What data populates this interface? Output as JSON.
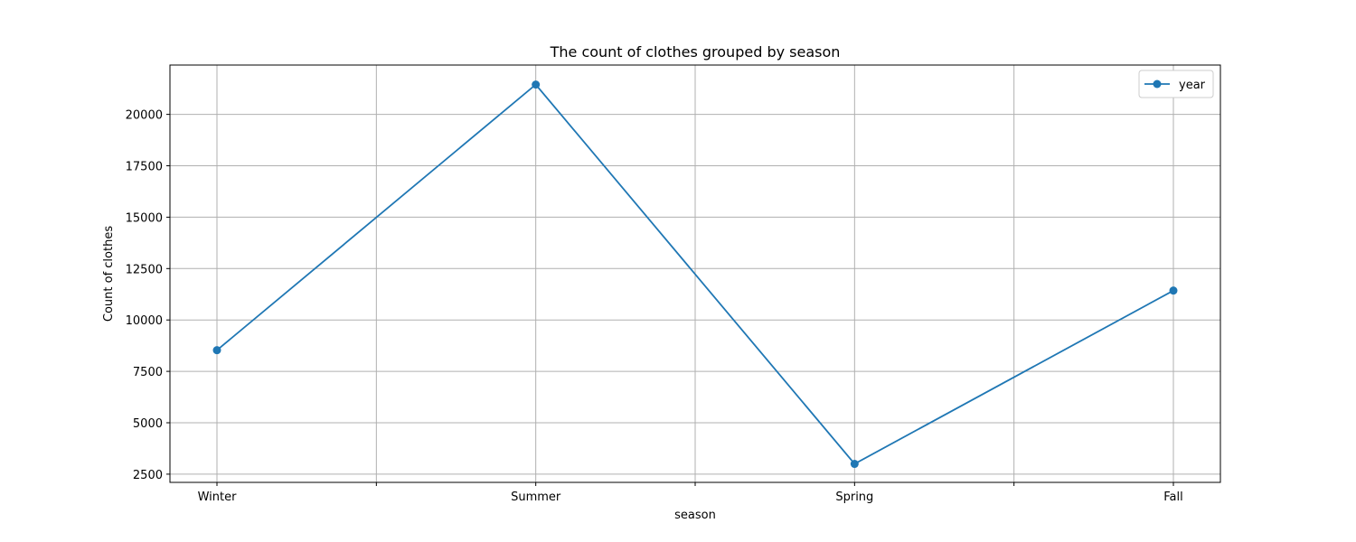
{
  "chart_data": {
    "type": "line",
    "title": "The count of clothes grouped by season",
    "xlabel": "season",
    "ylabel": "Count of clothes",
    "categories": [
      "Winter",
      "Summer",
      "Spring",
      "Fall"
    ],
    "series": [
      {
        "name": "year",
        "values": [
          8530,
          21450,
          3000,
          11430
        ],
        "color": "#1f77b4",
        "marker": "circle"
      }
    ],
    "ylim": [
      2100,
      22400
    ],
    "yticks": [
      2500,
      5000,
      7500,
      10000,
      12500,
      15000,
      17500,
      20000
    ],
    "ytick_labels": [
      "2500",
      "5000",
      "7500",
      "10000",
      "12500",
      "15000",
      "17500",
      "20000"
    ],
    "grid": true,
    "legend_position": "top-right"
  }
}
